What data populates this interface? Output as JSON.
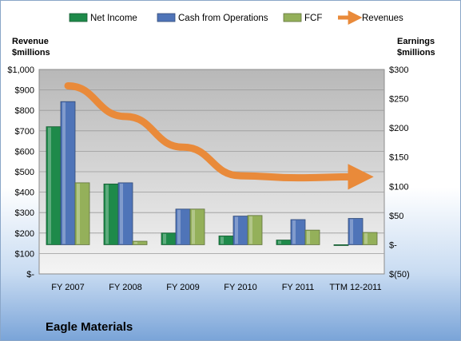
{
  "chart_data": {
    "type": "bar",
    "footer_title": "Eagle Materials",
    "left_axis_title": [
      "Revenue",
      "$millions"
    ],
    "right_axis_title": [
      "Earnings",
      "$millions"
    ],
    "categories": [
      "FY 2007",
      "FY 2008",
      "FY 2009",
      "FY 2010",
      "FY 2011",
      "TTM 12-2011"
    ],
    "left_ticks": [
      "$-",
      "$100",
      "$200",
      "$300",
      "$400",
      "$500",
      "$600",
      "$700",
      "$800",
      "$900",
      "$1,000"
    ],
    "right_ticks": [
      "$(50)",
      "$-",
      "$50",
      "$100",
      "$150",
      "$200",
      "$250",
      "$300"
    ],
    "left_range": [
      0,
      1000
    ],
    "right_range": [
      -50,
      300
    ],
    "legend_position": "top",
    "grid": true,
    "series": [
      {
        "name": "Net Income",
        "axis": "right",
        "color": "#1e8a4a",
        "values": [
          202,
          104,
          20,
          15,
          8,
          -1
        ]
      },
      {
        "name": "Cash from Operations",
        "axis": "right",
        "color": "#4f74b8",
        "values": [
          245,
          106,
          61,
          49,
          43,
          45
        ]
      },
      {
        "name": "FCF",
        "axis": "right",
        "color": "#94b05a",
        "values": [
          106,
          6,
          61,
          50,
          25,
          21
        ]
      },
      {
        "name": "Revenues",
        "axis": "left",
        "type": "line",
        "color": "#e98a3a",
        "values": [
          920,
          770,
          620,
          480,
          470,
          475
        ]
      }
    ]
  }
}
